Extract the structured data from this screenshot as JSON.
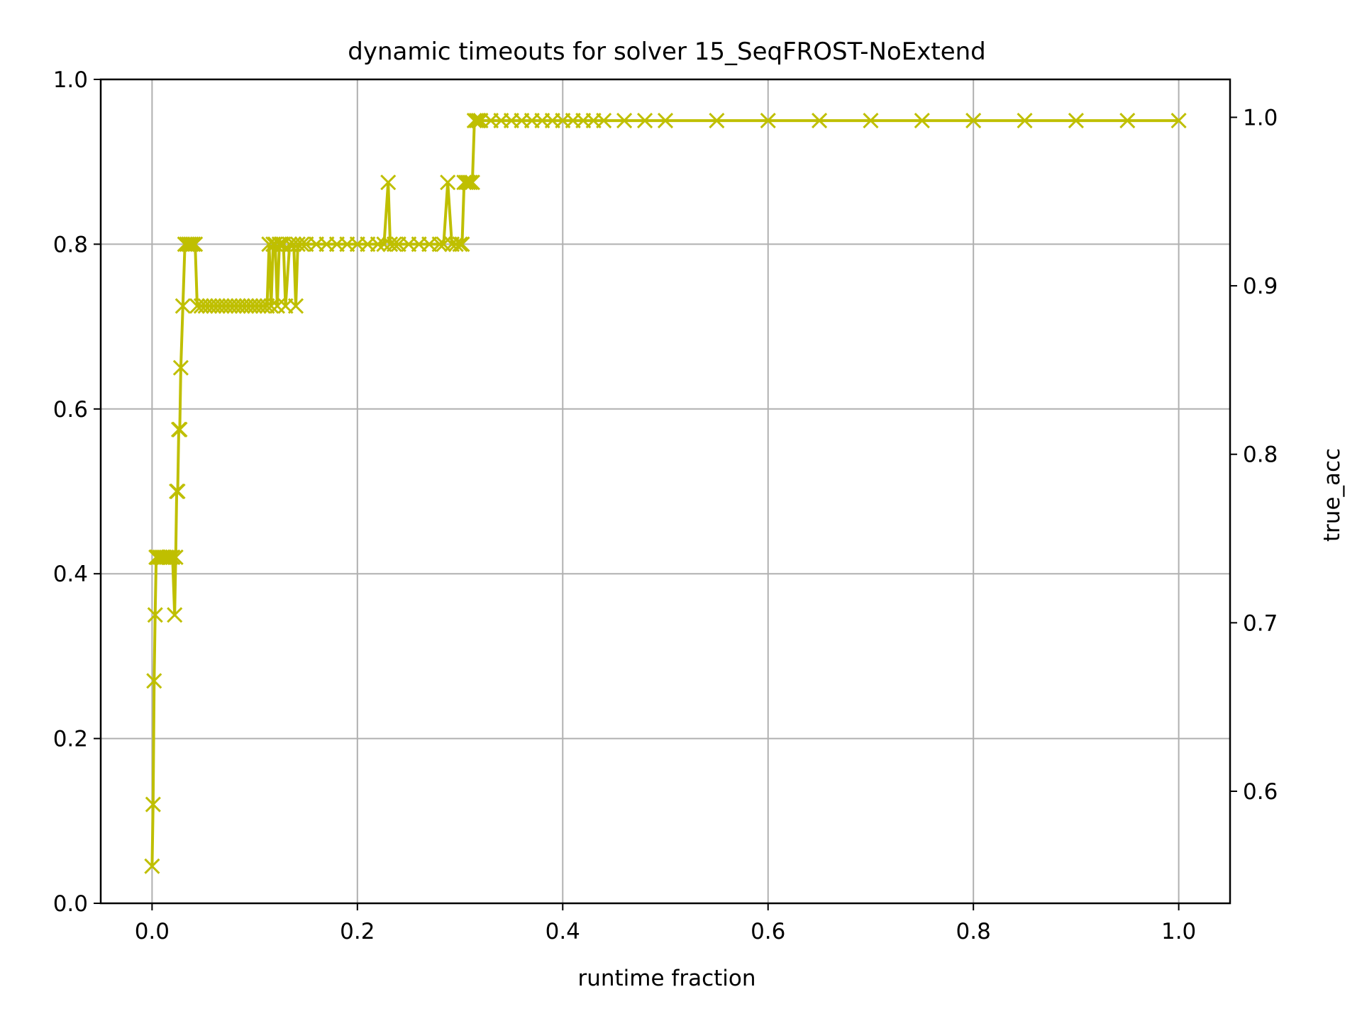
{
  "chart_data": {
    "type": "line",
    "title": "dynamic timeouts for solver 15_SeqFROST-NoExtend",
    "xlabel": "runtime fraction",
    "ylabel": "",
    "y2label": "true_acc",
    "xlim": [
      -0.05,
      1.05
    ],
    "ylim": [
      0.0,
      1.0
    ],
    "y2lim": [
      0.5335,
      1.0225
    ],
    "xticks": [
      0.0,
      0.2,
      0.4,
      0.6,
      0.8,
      1.0
    ],
    "xtick_labels": [
      "0.0",
      "0.2",
      "0.4",
      "0.6",
      "0.8",
      "1.0"
    ],
    "yticks": [
      0.0,
      0.2,
      0.4,
      0.6,
      0.8,
      1.0
    ],
    "ytick_labels": [
      "0.0",
      "0.2",
      "0.4",
      "0.6",
      "0.8",
      "1.0"
    ],
    "y2ticks": [
      0.6,
      0.7,
      0.8,
      0.9,
      1.0
    ],
    "y2tick_labels": [
      "0.6",
      "0.7",
      "0.8",
      "0.9",
      "1.0"
    ],
    "grid": true,
    "marker": "x",
    "colors": {
      "series": "#bfbf00",
      "y2label": "#ff0000",
      "grid": "#b0b0b0",
      "axes": "#000000"
    },
    "series": [
      {
        "axis": "left",
        "x": [
          0.0,
          0.001,
          0.002,
          0.003,
          0.004,
          0.005,
          0.006,
          0.008,
          0.01,
          0.012,
          0.014,
          0.016,
          0.018,
          0.02,
          0.022,
          0.023,
          0.024,
          0.025,
          0.026,
          0.027,
          0.028,
          0.03,
          0.032,
          0.034,
          0.036,
          0.038,
          0.04,
          0.042,
          0.044,
          0.048,
          0.052,
          0.056,
          0.06,
          0.064,
          0.068,
          0.072,
          0.076,
          0.08,
          0.084,
          0.088,
          0.092,
          0.096,
          0.1,
          0.104,
          0.108,
          0.112,
          0.114,
          0.116,
          0.118,
          0.12,
          0.122,
          0.124,
          0.126,
          0.128,
          0.13,
          0.134,
          0.138,
          0.14,
          0.142,
          0.146,
          0.15,
          0.16,
          0.17,
          0.18,
          0.19,
          0.2,
          0.21,
          0.22,
          0.226,
          0.23,
          0.232,
          0.236,
          0.24,
          0.25,
          0.26,
          0.27,
          0.28,
          0.284,
          0.288,
          0.292,
          0.296,
          0.3,
          0.302,
          0.304,
          0.306,
          0.308,
          0.31,
          0.312,
          0.314,
          0.316,
          0.318,
          0.32,
          0.33,
          0.34,
          0.35,
          0.36,
          0.37,
          0.38,
          0.39,
          0.4,
          0.41,
          0.42,
          0.43,
          0.44,
          0.46,
          0.48,
          0.5,
          0.55,
          0.6,
          0.65,
          0.7,
          0.75,
          0.8,
          0.85,
          0.9,
          0.95,
          1.0
        ],
        "y": [
          0.045,
          0.12,
          0.27,
          0.35,
          0.42,
          0.42,
          0.42,
          0.42,
          0.42,
          0.42,
          0.42,
          0.42,
          0.42,
          0.42,
          0.35,
          0.42,
          0.5,
          0.5,
          0.575,
          0.575,
          0.65,
          0.725,
          0.8,
          0.8,
          0.8,
          0.8,
          0.8,
          0.8,
          0.725,
          0.725,
          0.725,
          0.725,
          0.725,
          0.725,
          0.725,
          0.725,
          0.725,
          0.725,
          0.725,
          0.725,
          0.725,
          0.725,
          0.725,
          0.725,
          0.725,
          0.725,
          0.8,
          0.725,
          0.8,
          0.8,
          0.725,
          0.8,
          0.8,
          0.8,
          0.725,
          0.8,
          0.8,
          0.725,
          0.8,
          0.8,
          0.8,
          0.8,
          0.8,
          0.8,
          0.8,
          0.8,
          0.8,
          0.8,
          0.8,
          0.875,
          0.8,
          0.8,
          0.8,
          0.8,
          0.8,
          0.8,
          0.8,
          0.8,
          0.875,
          0.8,
          0.8,
          0.8,
          0.8,
          0.875,
          0.875,
          0.875,
          0.875,
          0.875,
          0.95,
          0.95,
          0.95,
          0.95,
          0.95,
          0.95,
          0.95,
          0.95,
          0.95,
          0.95,
          0.95,
          0.95,
          0.95,
          0.95,
          0.95,
          0.95,
          0.95,
          0.95,
          0.95,
          0.95,
          0.95,
          0.95,
          0.95,
          0.95,
          0.95,
          0.95,
          0.95,
          0.95,
          0.95
        ]
      }
    ]
  }
}
